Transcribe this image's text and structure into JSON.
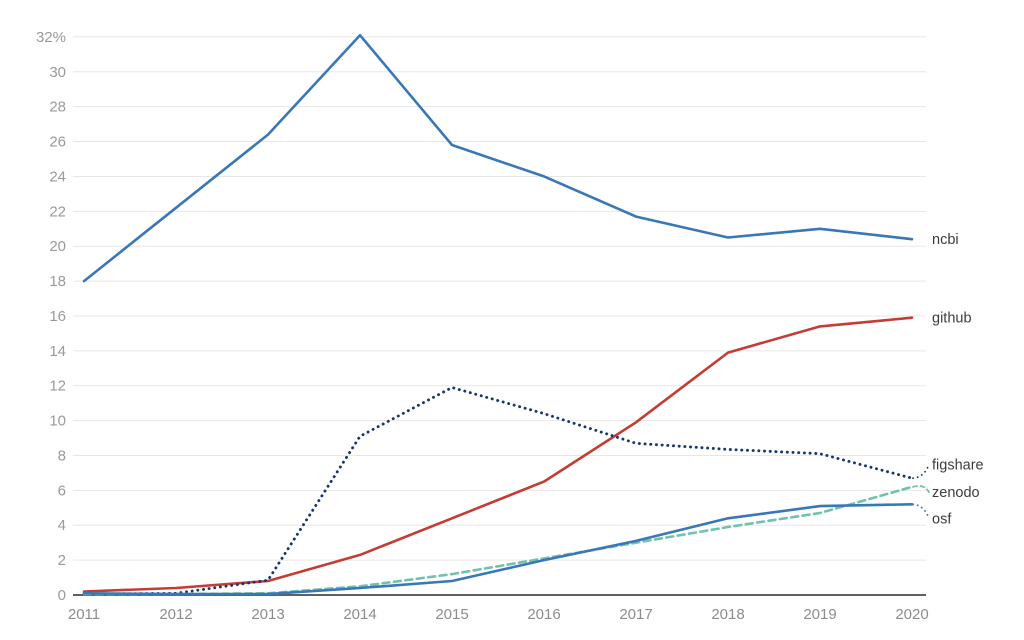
{
  "chart_data": {
    "type": "line",
    "title": "",
    "xlabel": "",
    "ylabel": "",
    "x_labels": [
      "2011",
      "2012",
      "2013",
      "2014",
      "2015",
      "2016",
      "2017",
      "2018",
      "2019",
      "2020"
    ],
    "ylim": [
      0,
      33
    ],
    "ytick_values": [
      0,
      2,
      4,
      6,
      8,
      10,
      12,
      14,
      16,
      18,
      20,
      22,
      24,
      26,
      28,
      30,
      32
    ],
    "ytick_labels": [
      "0",
      "2",
      "4",
      "6",
      "8",
      "10",
      "12",
      "14",
      "16",
      "18",
      "20",
      "22",
      "24",
      "26",
      "28",
      "30",
      "32%"
    ],
    "grid": true,
    "legend_position": "right-end-labels",
    "series": [
      {
        "name": "ncbi",
        "color": "#3a77b6",
        "style": "solid",
        "values": [
          18.0,
          22.2,
          26.4,
          32.1,
          25.8,
          24.0,
          21.7,
          20.5,
          21.0,
          20.4
        ]
      },
      {
        "name": "github",
        "color": "#c53c35",
        "style": "solid",
        "values": [
          0.2,
          0.4,
          0.8,
          2.3,
          4.4,
          6.5,
          9.9,
          13.9,
          15.4,
          15.9
        ]
      },
      {
        "name": "figshare",
        "color": "#18366e",
        "style": "dotted",
        "values": [
          0.05,
          0.1,
          0.85,
          9.1,
          11.9,
          10.4,
          8.7,
          8.35,
          8.1,
          6.7
        ]
      },
      {
        "name": "zenodo",
        "color": "#70c1ae",
        "style": "dashed",
        "values": [
          0.05,
          0.05,
          0.1,
          0.5,
          1.2,
          2.1,
          3.0,
          3.9,
          4.7,
          6.2
        ]
      },
      {
        "name": "osf",
        "color": "#3a77b6",
        "style": "solid",
        "values": [
          0.1,
          0.05,
          0.05,
          0.4,
          0.8,
          2.0,
          3.1,
          4.4,
          5.1,
          5.2
        ]
      }
    ],
    "colors": {
      "grid_line": "#e7e7e7",
      "zero_axis": "#606060",
      "ytick_text": "#9a9a9a",
      "xtick_text": "#8c8c8c",
      "end_label_text": "#3c3c3c"
    }
  }
}
